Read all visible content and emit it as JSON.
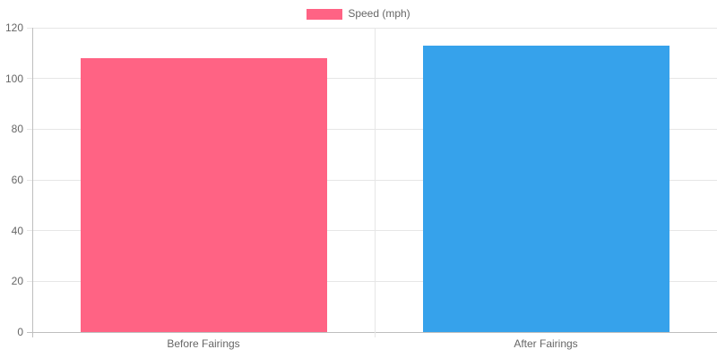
{
  "chart_data": {
    "type": "bar",
    "categories": [
      "Before Fairings",
      "After Fairings"
    ],
    "series": [
      {
        "name": "Speed (mph)",
        "values": [
          108,
          113
        ]
      }
    ],
    "bar_colors": [
      "#FF6384",
      "#36A2EB"
    ],
    "legend_swatch_color": "#FF6384",
    "legend_position": "top",
    "ylim": [
      0,
      120
    ],
    "yticks": [
      0,
      20,
      40,
      60,
      80,
      100,
      120
    ],
    "grid": true,
    "colors": {
      "grid_line": "#e6e6e6",
      "axis_line": "#bfbfbf",
      "tick_text": "#666666",
      "background": "#ffffff"
    }
  }
}
